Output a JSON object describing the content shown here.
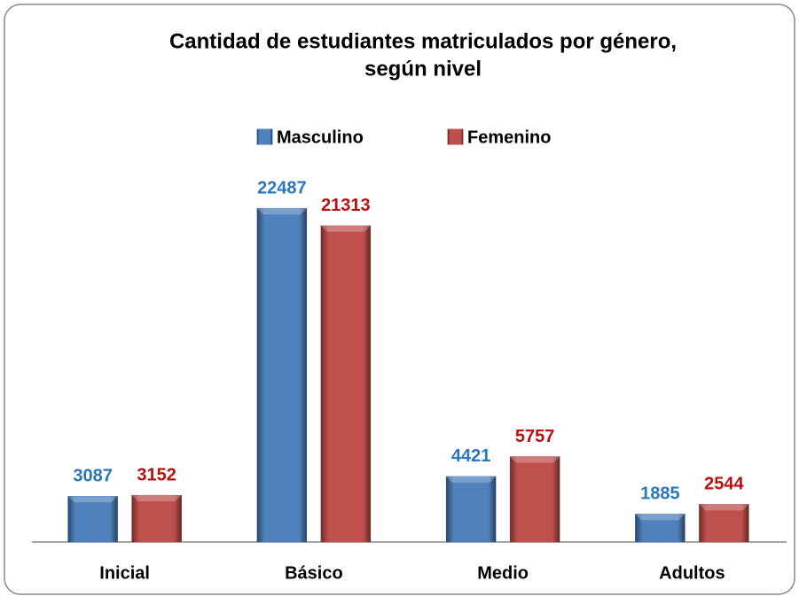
{
  "chart_data": {
    "type": "bar",
    "title": [
      "Cantidad de estudiantes matriculados por género,",
      "según nivel"
    ],
    "categories": [
      "Inicial",
      "Básico",
      "Medio",
      "Adultos"
    ],
    "series": [
      {
        "name": "Masculino",
        "color": "#4f81bd",
        "label_color": "#2a77c0",
        "values": [
          3087,
          22487,
          4421,
          1885
        ]
      },
      {
        "name": "Femenino",
        "color": "#c0504d",
        "label_color": "#b80f0f",
        "values": [
          3152,
          21313,
          5757,
          2544
        ]
      }
    ],
    "ylim": [
      0,
      25000
    ],
    "grid": false,
    "legend": "top"
  }
}
